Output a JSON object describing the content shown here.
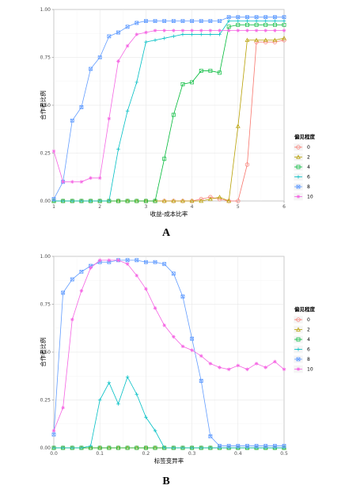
{
  "chart_data": [
    {
      "type": "line",
      "panel_label": "A",
      "xlabel": "收益-成本比率",
      "ylabel": "合作者比例",
      "xlim": [
        1,
        6
      ],
      "ylim": [
        0,
        1
      ],
      "xticks": [
        "1",
        "2",
        "3",
        "4",
        "5",
        "6"
      ],
      "yticks": [
        "0.00",
        "0.25",
        "0.50",
        "0.75",
        "1.00"
      ],
      "legend": {
        "title": "偏见程度",
        "position": "right"
      },
      "x": [
        1.0,
        1.2,
        1.4,
        1.6,
        1.8,
        2.0,
        2.2,
        2.4,
        2.6,
        2.8,
        3.0,
        3.2,
        3.4,
        3.6,
        3.8,
        4.0,
        4.2,
        4.4,
        4.6,
        4.8,
        5.0,
        5.2,
        5.4,
        5.6,
        5.8,
        6.0
      ],
      "series": [
        {
          "name": "0",
          "color": "#F8766D",
          "values": [
            0,
            0,
            0,
            0,
            0,
            0,
            0,
            0,
            0,
            0,
            0,
            0,
            0,
            0,
            0,
            0,
            0.01,
            0.02,
            0.01,
            0,
            0,
            0.19,
            0.83,
            0.83,
            0.83,
            0.84
          ]
        },
        {
          "name": "2",
          "color": "#B79F00",
          "values": [
            0,
            0,
            0,
            0,
            0,
            0,
            0,
            0,
            0,
            0,
            0,
            0,
            0,
            0,
            0,
            0,
            0,
            0.01,
            0.02,
            0,
            0.39,
            0.84,
            0.84,
            0.84,
            0.84,
            0.85
          ]
        },
        {
          "name": "4",
          "color": "#00BA38",
          "values": [
            0,
            0,
            0,
            0,
            0,
            0,
            0,
            0,
            0,
            0,
            0,
            0,
            0.22,
            0.45,
            0.61,
            0.62,
            0.68,
            0.68,
            0.67,
            0.91,
            0.92,
            0.92,
            0.92,
            0.92,
            0.92,
            0.92
          ]
        },
        {
          "name": "6",
          "color": "#00BFC4",
          "values": [
            0,
            0,
            0,
            0,
            0,
            0,
            0,
            0.27,
            0.47,
            0.62,
            0.83,
            0.84,
            0.85,
            0.86,
            0.87,
            0.87,
            0.87,
            0.87,
            0.87,
            0.94,
            0.94,
            0.94,
            0.94,
            0.94,
            0.94,
            0.94
          ]
        },
        {
          "name": "8",
          "color": "#619CFF",
          "values": [
            0.01,
            0.1,
            0.42,
            0.49,
            0.69,
            0.75,
            0.86,
            0.88,
            0.91,
            0.93,
            0.94,
            0.94,
            0.94,
            0.94,
            0.94,
            0.94,
            0.94,
            0.94,
            0.94,
            0.96,
            0.96,
            0.96,
            0.96,
            0.96,
            0.96,
            0.96
          ]
        },
        {
          "name": "10",
          "color": "#F564E3",
          "values": [
            0.26,
            0.1,
            0.1,
            0.1,
            0.12,
            0.12,
            0.43,
            0.73,
            0.81,
            0.87,
            0.88,
            0.89,
            0.89,
            0.89,
            0.89,
            0.89,
            0.89,
            0.89,
            0.89,
            0.89,
            0.89,
            0.89,
            0.89,
            0.89,
            0.89,
            0.89
          ]
        }
      ]
    },
    {
      "type": "line",
      "panel_label": "B",
      "xlabel": "标签变异率",
      "ylabel": "合作者比例",
      "xlim": [
        0,
        0.5
      ],
      "ylim": [
        0,
        1
      ],
      "xticks": [
        "0.0",
        "0.1",
        "0.2",
        "0.3",
        "0.4",
        "0.5"
      ],
      "yticks": [
        "0.00",
        "0.25",
        "0.50",
        "0.75",
        "1.00"
      ],
      "legend": {
        "title": "偏见程度",
        "position": "right"
      },
      "x": [
        0.0,
        0.02,
        0.04,
        0.06,
        0.08,
        0.1,
        0.12,
        0.14,
        0.16,
        0.18,
        0.2,
        0.22,
        0.24,
        0.26,
        0.28,
        0.3,
        0.32,
        0.34,
        0.36,
        0.38,
        0.4,
        0.42,
        0.44,
        0.46,
        0.48,
        0.5
      ],
      "series": [
        {
          "name": "0",
          "color": "#F8766D",
          "values": [
            0,
            0,
            0,
            0,
            0,
            0,
            0,
            0,
            0,
            0,
            0,
            0,
            0,
            0,
            0,
            0,
            0,
            0,
            0,
            0,
            0,
            0,
            0,
            0,
            0,
            0
          ]
        },
        {
          "name": "2",
          "color": "#B79F00",
          "values": [
            0,
            0,
            0,
            0,
            0,
            0,
            0,
            0,
            0,
            0,
            0,
            0,
            0,
            0,
            0,
            0,
            0,
            0,
            0,
            0,
            0,
            0,
            0,
            0,
            0,
            0
          ]
        },
        {
          "name": "4",
          "color": "#00BA38",
          "values": [
            0,
            0,
            0,
            0,
            0,
            0,
            0,
            0,
            0,
            0,
            0,
            0,
            0,
            0,
            0,
            0,
            0,
            0,
            0,
            0,
            0,
            0,
            0,
            0,
            0,
            0
          ]
        },
        {
          "name": "6",
          "color": "#00BFC4",
          "values": [
            0,
            0,
            0,
            0,
            0.01,
            0.25,
            0.34,
            0.23,
            0.37,
            0.28,
            0.16,
            0.09,
            0,
            0,
            0,
            0,
            0,
            0,
            0,
            0,
            0,
            0,
            0,
            0,
            0,
            0
          ]
        },
        {
          "name": "8",
          "color": "#619CFF",
          "values": [
            0.07,
            0.81,
            0.88,
            0.92,
            0.95,
            0.97,
            0.97,
            0.98,
            0.98,
            0.98,
            0.97,
            0.97,
            0.96,
            0.91,
            0.79,
            0.57,
            0.35,
            0.06,
            0.01,
            0.01,
            0.01,
            0.01,
            0.01,
            0.01,
            0.01,
            0.01
          ]
        },
        {
          "name": "10",
          "color": "#F564E3",
          "values": [
            0.09,
            0.21,
            0.67,
            0.82,
            0.94,
            0.98,
            0.98,
            0.98,
            0.96,
            0.9,
            0.83,
            0.73,
            0.64,
            0.58,
            0.53,
            0.51,
            0.48,
            0.44,
            0.42,
            0.41,
            0.43,
            0.41,
            0.44,
            0.42,
            0.45,
            0.41
          ]
        }
      ]
    }
  ]
}
